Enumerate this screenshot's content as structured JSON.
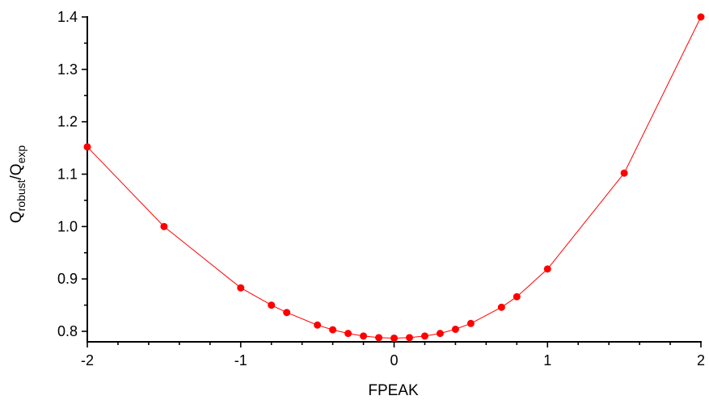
{
  "chart_data": {
    "type": "line",
    "title": "",
    "xlabel": "FPEAK",
    "ylabel": {
      "main1": "Q",
      "sub1": "robust",
      "slash": "/",
      "main2": "Q",
      "sub2": "exp"
    },
    "xlim": [
      -2,
      2
    ],
    "ylim": [
      0.78,
      1.4
    ],
    "x_ticks": [
      {
        "value": -2,
        "label": "-2"
      },
      {
        "value": -1,
        "label": "-1"
      },
      {
        "value": 0,
        "label": "0"
      },
      {
        "value": 1,
        "label": "1"
      },
      {
        "value": 2,
        "label": "2"
      }
    ],
    "y_ticks": [
      {
        "value": 0.8,
        "label": "0.8"
      },
      {
        "value": 0.9,
        "label": "0.9"
      },
      {
        "value": 1.0,
        "label": "1.0"
      },
      {
        "value": 1.1,
        "label": "1.1"
      },
      {
        "value": 1.2,
        "label": "1.2"
      },
      {
        "value": 1.3,
        "label": "1.3"
      },
      {
        "value": 1.4,
        "label": "1.4"
      }
    ],
    "grid": false,
    "series": [
      {
        "color": "#ff0000",
        "x": [
          -2,
          -1.5,
          -1,
          -0.8,
          -0.7,
          -0.5,
          -0.4,
          -0.3,
          -0.2,
          -0.1,
          0,
          0.1,
          0.2,
          0.3,
          0.4,
          0.5,
          0.7,
          0.8,
          1,
          1.5,
          2
        ],
        "y": [
          1.152,
          1.0,
          0.883,
          0.85,
          0.836,
          0.812,
          0.803,
          0.796,
          0.791,
          0.788,
          0.787,
          0.788,
          0.791,
          0.796,
          0.804,
          0.815,
          0.846,
          0.866,
          0.919,
          1.102,
          1.4
        ]
      }
    ]
  }
}
